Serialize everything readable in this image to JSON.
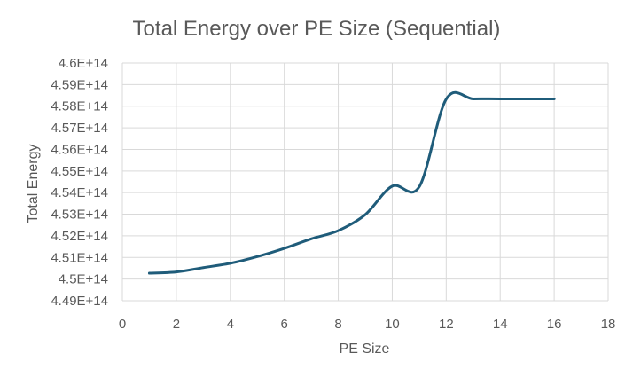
{
  "chart_data": {
    "type": "line",
    "title": "Total Energy over PE Size (Sequential)",
    "xlabel": "PE Size",
    "ylabel": "Total Energy",
    "xlim": [
      0,
      18
    ],
    "ylim": [
      449000000000000,
      460000000000000
    ],
    "x_ticks": [
      "0",
      "2",
      "4",
      "6",
      "8",
      "10",
      "12",
      "14",
      "16",
      "18"
    ],
    "y_ticks": [
      "4.49E+14",
      "4.5E+14",
      "4.51E+14",
      "4.52E+14",
      "4.53E+14",
      "4.54E+14",
      "4.55E+14",
      "4.56E+14",
      "4.57E+14",
      "4.58E+14",
      "4.59E+14",
      "4.6E+14"
    ],
    "grid": true,
    "series": [
      {
        "color": "#1f5c7a",
        "x": [
          1,
          2,
          3,
          4,
          5,
          6,
          7,
          8,
          9,
          10,
          11,
          12,
          13,
          14,
          15,
          16
        ],
        "y": [
          450270000000000,
          450330000000000,
          450530000000000,
          450730000000000,
          451040000000000,
          451420000000000,
          451860000000000,
          452240000000000,
          452980000000000,
          454300000000000,
          454270000000000,
          458330000000000,
          458340000000000,
          458340000000000,
          458340000000000,
          458340000000000
        ]
      }
    ]
  }
}
